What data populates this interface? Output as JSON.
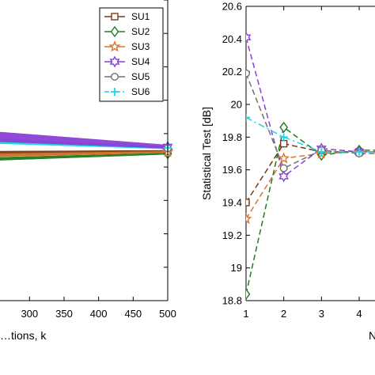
{
  "chart_data": [
    {
      "type": "line",
      "xlabel": "…tions, k",
      "ylabel": "",
      "xlim": [
        255,
        500
      ],
      "xticks": [
        300,
        350,
        400,
        450,
        500
      ],
      "grid": false,
      "legend_position": "top-right",
      "series": [
        {
          "name": "SU1",
          "color": "#7a3b10",
          "marker": "square",
          "x": [
            255,
            500
          ],
          "y_upper": [
            19.695,
            19.7
          ],
          "y_lower": [
            19.665,
            19.688
          ]
        },
        {
          "name": "SU2",
          "color": "#1f7a1f",
          "marker": "diamond",
          "x": [
            255,
            500
          ],
          "y_upper": [
            19.658,
            19.684
          ],
          "y_lower": [
            19.64,
            19.676
          ]
        },
        {
          "name": "SU3",
          "color": "#d9762b",
          "marker": "star",
          "x": [
            255,
            500
          ],
          "y_upper": [
            19.68,
            19.694
          ],
          "y_lower": [
            19.662,
            19.686
          ]
        },
        {
          "name": "SU4",
          "color": "#8a3fd6",
          "marker": "hexagram",
          "x": [
            255,
            500
          ],
          "y_upper": [
            19.81,
            19.732
          ],
          "y_lower": [
            19.752,
            19.712
          ]
        },
        {
          "name": "SU5",
          "color": "#707070",
          "marker": "circle",
          "x": [
            255,
            500
          ],
          "y_upper": [
            19.762,
            19.714
          ],
          "y_lower": [
            19.748,
            19.71
          ]
        },
        {
          "name": "SU6",
          "color": "#19d6e8",
          "marker": "plus",
          "x": [
            255,
            500
          ],
          "y_upper": [
            19.768,
            19.722
          ],
          "y_lower": [
            19.74,
            19.708
          ]
        }
      ]
    },
    {
      "type": "line",
      "xlabel": "N…",
      "ylabel": "Statistical Test  [dB]",
      "xlim": [
        1,
        4.6
      ],
      "ylim": [
        18.8,
        20.6
      ],
      "xticks": [
        1,
        2,
        3,
        4
      ],
      "yticks": [
        18.8,
        19,
        19.2,
        19.4,
        19.6,
        19.8,
        20,
        20.2,
        20.4,
        20.6
      ],
      "grid": false,
      "series": [
        {
          "name": "SU1",
          "color": "#7a3b10",
          "marker": "square",
          "x": [
            1,
            2,
            3,
            4
          ],
          "y": [
            19.4,
            19.76,
            19.71,
            19.71
          ]
        },
        {
          "name": "SU2",
          "color": "#1f7a1f",
          "marker": "diamond",
          "x": [
            1,
            2,
            3,
            4
          ],
          "y": [
            18.84,
            19.86,
            19.69,
            19.72
          ]
        },
        {
          "name": "SU3",
          "color": "#d9762b",
          "marker": "star",
          "x": [
            1,
            2,
            3,
            4
          ],
          "y": [
            19.3,
            19.67,
            19.7,
            19.71
          ]
        },
        {
          "name": "SU4",
          "color": "#8a3fd6",
          "marker": "hexagram",
          "x": [
            1,
            2,
            3,
            4
          ],
          "y": [
            20.41,
            19.56,
            19.73,
            19.71
          ]
        },
        {
          "name": "SU5",
          "color": "#707070",
          "marker": "circle",
          "x": [
            1,
            2,
            3,
            4
          ],
          "y": [
            20.19,
            19.61,
            19.72,
            19.7
          ]
        },
        {
          "name": "SU6",
          "color": "#19d6e8",
          "marker": "plus",
          "x": [
            1,
            2,
            3,
            4
          ],
          "y": [
            19.92,
            19.8,
            19.71,
            19.71
          ]
        }
      ]
    }
  ]
}
